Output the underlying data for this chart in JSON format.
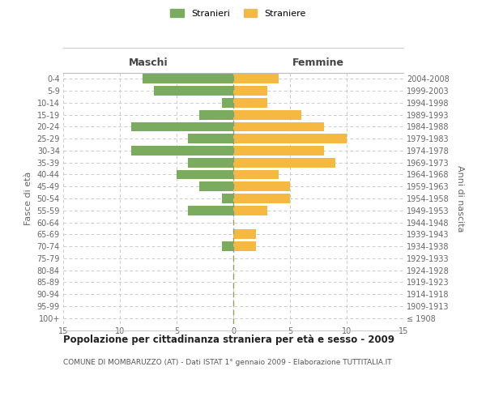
{
  "age_groups": [
    "100+",
    "95-99",
    "90-94",
    "85-89",
    "80-84",
    "75-79",
    "70-74",
    "65-69",
    "60-64",
    "55-59",
    "50-54",
    "45-49",
    "40-44",
    "35-39",
    "30-34",
    "25-29",
    "20-24",
    "15-19",
    "10-14",
    "5-9",
    "0-4"
  ],
  "birth_years": [
    "≤ 1908",
    "1909-1913",
    "1914-1918",
    "1919-1923",
    "1924-1928",
    "1929-1933",
    "1934-1938",
    "1939-1943",
    "1944-1948",
    "1949-1953",
    "1954-1958",
    "1959-1963",
    "1964-1968",
    "1969-1973",
    "1974-1978",
    "1979-1983",
    "1984-1988",
    "1989-1993",
    "1994-1998",
    "1999-2003",
    "2004-2008"
  ],
  "males": [
    0,
    0,
    0,
    0,
    0,
    0,
    1,
    0,
    0,
    4,
    1,
    3,
    5,
    4,
    9,
    4,
    9,
    3,
    1,
    7,
    8
  ],
  "females": [
    0,
    0,
    0,
    0,
    0,
    0,
    2,
    2,
    0,
    3,
    5,
    5,
    4,
    9,
    8,
    10,
    8,
    6,
    3,
    3,
    4
  ],
  "male_color": "#7aab5e",
  "female_color": "#f5b942",
  "title_main": "Popolazione per cittadinanza straniera per età e sesso - 2009",
  "title_sub": "COMUNE DI MOMBARUZZO (AT) - Dati ISTAT 1° gennaio 2009 - Elaborazione TUTTITALIA.IT",
  "legend_male": "Stranieri",
  "legend_female": "Straniere",
  "xlabel_left": "Maschi",
  "xlabel_right": "Femmine",
  "ylabel_left": "Fasce di età",
  "ylabel_right": "Anni di nascita",
  "xlim": 15,
  "background_color": "#ffffff",
  "grid_color": "#cccccc",
  "bar_height": 0.8
}
